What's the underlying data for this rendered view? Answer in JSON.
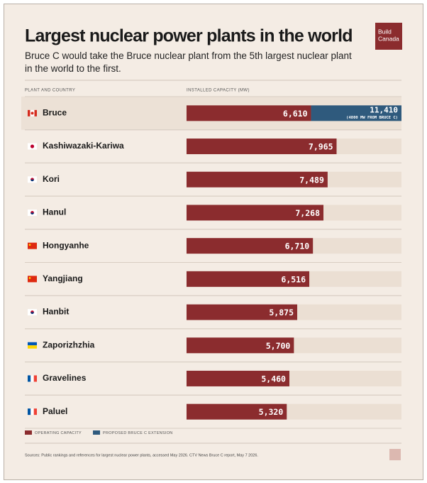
{
  "chart_data": {
    "type": "bar",
    "title": "Largest nuclear power plants in the world",
    "subtitle": "Bruce C would take the Bruce nuclear plant from the 5th largest nuclear plant in the world to the first.",
    "brand": [
      "Build",
      "Canada"
    ],
    "category_header": "PLANT AND COUNTRY",
    "value_header": "INSTALLED CAPACITY (MW)",
    "categories": [
      "Bruce",
      "Kashiwazaki-Kariwa",
      "Kori",
      "Hanul",
      "Hongyanhe",
      "Yangjiang",
      "Hanbit",
      "Zaporizhzhia",
      "Gravelines",
      "Paluel"
    ],
    "series": [
      {
        "name": "OPERATING CAPACITY",
        "color": "#8b2c2e",
        "values": [
          6610,
          7965,
          7489,
          7268,
          6710,
          6516,
          5875,
          5700,
          5460,
          5320
        ],
        "value_labels": [
          "6,610",
          "7,965",
          "7,489",
          "7,268",
          "6,710",
          "6,516",
          "5,875",
          "5,700",
          "5,460",
          "5,320"
        ]
      },
      {
        "name": "PROPOSED BRUCE C EXTENSION",
        "color": "#2f5a7d",
        "values": [
          4800,
          null,
          null,
          null,
          null,
          null,
          null,
          null,
          null,
          null
        ]
      }
    ],
    "annotations": [
      {
        "label": "11,410",
        "value": 11410,
        "note": "(4800 MW FROM BRUCE C)"
      }
    ],
    "xlim": [
      0,
      11410
    ],
    "stacked": true,
    "source": "Sources: Public rankings and references for largest nuclear power plants, accessed May 2026. CTV News Bruce C report, May 7 2026."
  }
}
